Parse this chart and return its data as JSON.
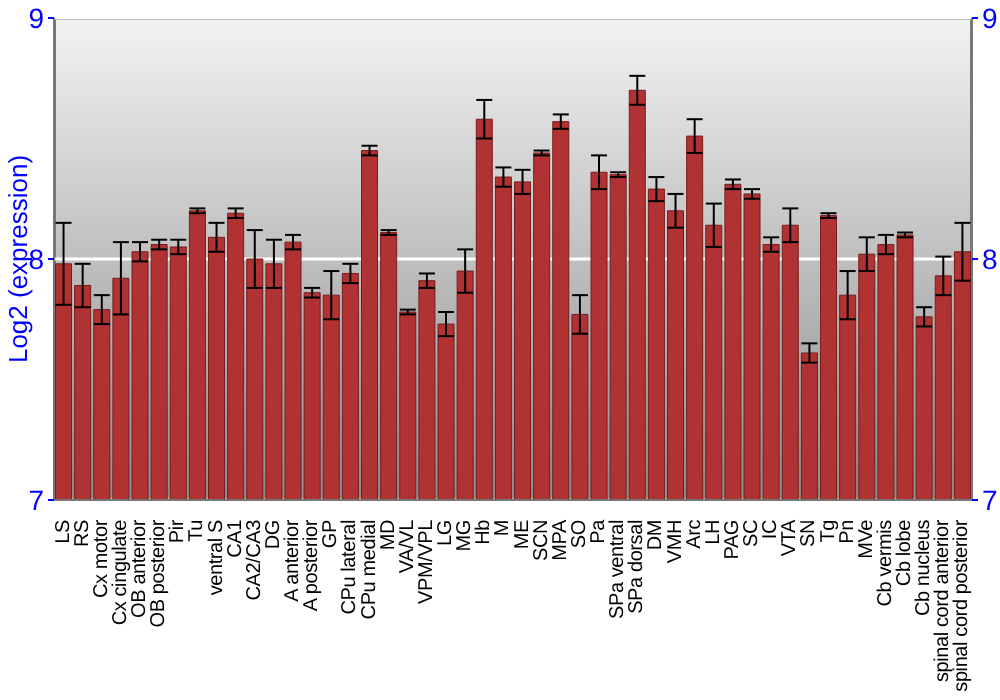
{
  "chart_data": {
    "type": "bar",
    "ylabel": "Log2 (expression)",
    "categories": [
      "LS",
      "RS",
      "Cx motor",
      "Cx cingulate",
      "OB anterior",
      "OB posterior",
      "Pir",
      "Tu",
      "ventral S",
      "CA1",
      "CA2/CA3",
      "DG",
      "A anterior",
      "A posterior",
      "GP",
      "CPu lateral",
      "CPu medial",
      "MD",
      "VA/VL",
      "VPM/VPL",
      "LG",
      "MG",
      "Hb",
      "M",
      "ME",
      "SCN",
      "MPA",
      "SO",
      "Pa",
      "SPa ventral",
      "SPa dorsal",
      "DM",
      "VMH",
      "Arc",
      "LH",
      "PAG",
      "SC",
      "IC",
      "VTA",
      "SN",
      "Tg",
      "Pn",
      "MVe",
      "Cb vermis",
      "Cb lobe",
      "Cb nucleus",
      "spinal cord anterior",
      "spinal cord posterior"
    ],
    "values": [
      7.98,
      7.89,
      7.79,
      7.92,
      8.03,
      8.06,
      8.05,
      8.2,
      8.09,
      8.19,
      8.0,
      7.98,
      8.07,
      7.86,
      7.85,
      7.94,
      8.45,
      8.11,
      7.78,
      7.91,
      7.73,
      7.95,
      8.58,
      8.34,
      8.32,
      8.44,
      8.57,
      7.77,
      8.36,
      8.35,
      8.7,
      8.29,
      8.2,
      8.51,
      8.14,
      8.31,
      8.27,
      8.06,
      8.14,
      7.61,
      8.18,
      7.85,
      8.02,
      8.06,
      8.1,
      7.76,
      7.93,
      8.03
    ],
    "errors": [
      0.17,
      0.09,
      0.06,
      0.15,
      0.04,
      0.02,
      0.03,
      0.01,
      0.06,
      0.02,
      0.12,
      0.1,
      0.03,
      0.02,
      0.1,
      0.04,
      0.02,
      0.01,
      0.01,
      0.03,
      0.05,
      0.09,
      0.08,
      0.04,
      0.05,
      0.01,
      0.03,
      0.08,
      0.07,
      0.01,
      0.06,
      0.05,
      0.07,
      0.07,
      0.09,
      0.02,
      0.02,
      0.03,
      0.07,
      0.04,
      0.01,
      0.1,
      0.07,
      0.04,
      0.01,
      0.04,
      0.08,
      0.12
    ],
    "color": "#b03232",
    "ylim": [
      7,
      9
    ],
    "yticks": [
      7,
      8,
      9
    ],
    "y2lim": [
      7,
      9
    ],
    "y2ticks": [
      7,
      8,
      9
    ],
    "grid": "y"
  }
}
